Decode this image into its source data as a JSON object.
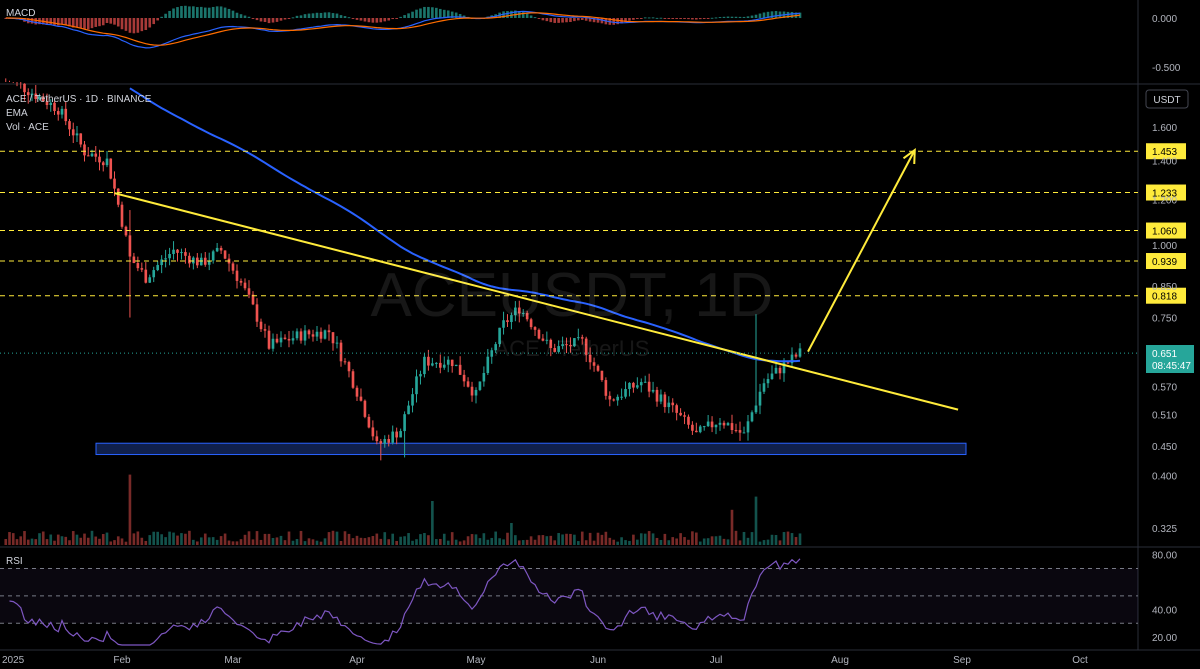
{
  "symbol": {
    "title": "ACE / TetherUS · 1D · BINANCE",
    "ema_label": "EMA",
    "vol_label": "Vol · ACE",
    "watermark": "ACEUSDT, 1D",
    "watermark_sub": "ACE / TetherUS",
    "currency_badge": "USDT"
  },
  "price_now": {
    "value": "0.651",
    "countdown": "08:45:47"
  },
  "colors": {
    "up": "#26a69a",
    "down": "#ef5350",
    "ema": "#2962ff",
    "trendline": "#ffeb3b",
    "level": "#ffeb3b",
    "support_zone": "#1e3a8a",
    "macd_line": "#2962ff",
    "signal_line": "#ff6d00",
    "rsi": "#7e57c2"
  },
  "chart_data": {
    "type": "candlestick",
    "x_ticks": [
      "2025",
      "Feb",
      "Mar",
      "Apr",
      "May",
      "Jun",
      "Jul",
      "Aug",
      "Sep",
      "Oct"
    ],
    "y_ticks": [
      "1.600",
      "1.400",
      "1.200",
      "1.000",
      "0.850",
      "0.750",
      "0.650",
      "0.570",
      "0.510",
      "0.450",
      "0.400",
      "0.325"
    ],
    "price_levels": [
      "1.453",
      "1.233",
      "1.060",
      "0.939",
      "0.818"
    ],
    "support_zone": [
      0.435,
      0.455
    ],
    "trendline": {
      "from": [
        "2025-01-30",
        1.23
      ],
      "to": [
        "2025-08-31",
        0.52
      ]
    },
    "projection_arrow": {
      "from": [
        "2025-07-24",
        0.655
      ],
      "to": [
        "2025-08-20",
        1.46
      ]
    },
    "candles": [],
    "macd": {
      "label": "MACD",
      "y_ticks": [
        "0.000",
        "-0.500"
      ]
    },
    "rsi": {
      "label": "RSI",
      "y_ticks": [
        "80.00",
        "40.00",
        "20.00"
      ],
      "levels": [
        70,
        50,
        30
      ]
    }
  }
}
